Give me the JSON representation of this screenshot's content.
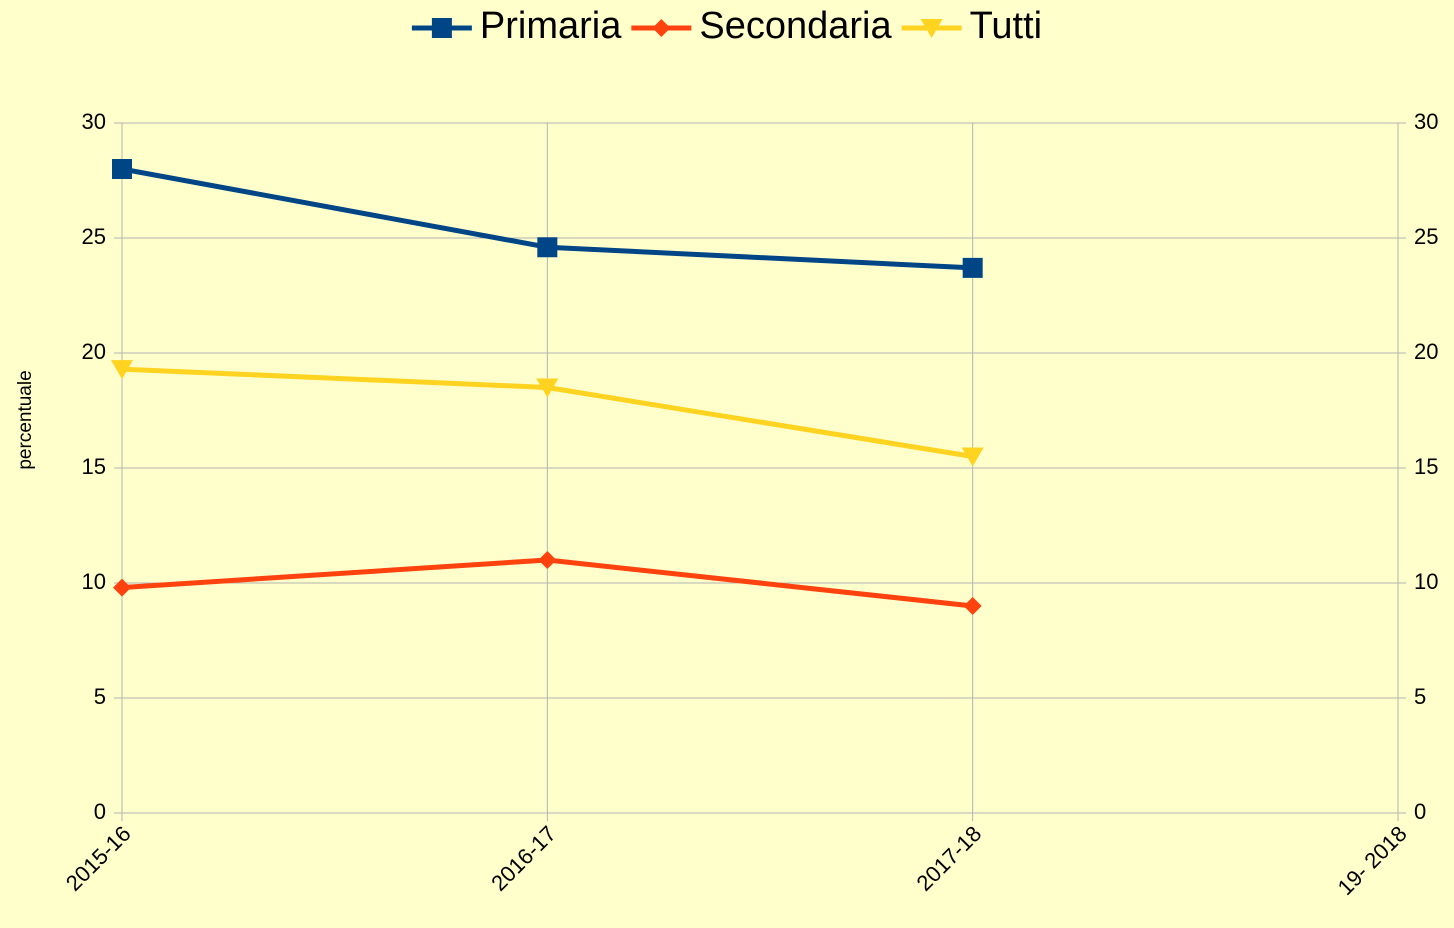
{
  "chart_data": {
    "type": "line",
    "y_label": "percentuale",
    "categories": [
      "2015-16",
      "2016-17",
      "2017-18",
      "19- 2018"
    ],
    "series": [
      {
        "name": "Primaria",
        "color": "#004586",
        "marker": "square",
        "values": [
          28,
          24.6,
          23.7,
          null
        ]
      },
      {
        "name": "Secondaria",
        "color": "#ff420e",
        "marker": "diamond",
        "values": [
          9.8,
          11,
          9,
          null
        ]
      },
      {
        "name": "Tutti",
        "color": "#ffd320",
        "marker": "triangle-down",
        "values": [
          19.3,
          18.5,
          15.5,
          null
        ]
      }
    ],
    "ylim": [
      0,
      30
    ],
    "yticks": [
      0,
      5,
      10,
      15,
      20,
      25,
      30
    ],
    "y2lim": [
      0,
      30
    ],
    "y2ticks": [
      0,
      5,
      10,
      15,
      20,
      25,
      30
    ],
    "grid": true,
    "legend": "top"
  }
}
